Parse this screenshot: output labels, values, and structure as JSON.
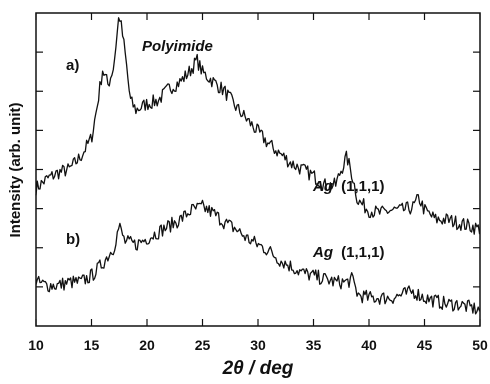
{
  "chart_data": {
    "type": "line",
    "title": "",
    "xlabel": "2θ / deg",
    "ylabel": "Intensity (arb. unit)",
    "xlim": [
      10,
      50
    ],
    "x_ticks": [
      10,
      15,
      20,
      25,
      30,
      35,
      40,
      45,
      50
    ],
    "tick_labels": [
      "10",
      "15",
      "20",
      "25",
      "30",
      "35",
      "40",
      "45",
      "50"
    ],
    "grid": false,
    "y_tick_labels_shown": false,
    "annotations": {
      "label_a": "a)",
      "label_b": "b)",
      "polyimide": "Polyimide",
      "ag_a_italic": "Ag",
      "ag_a_index": "(1,1,1)",
      "ag_b_italic": "Ag",
      "ag_b_index": "(1,1,1)"
    },
    "series": [
      {
        "id": "a",
        "x": [
          10,
          11,
          12,
          13,
          14,
          15,
          15.5,
          16,
          16.5,
          17,
          17.5,
          18,
          18.5,
          19,
          20,
          21,
          22,
          23,
          24,
          24.5,
          25,
          26,
          27,
          28,
          29,
          30,
          31,
          32,
          33,
          34,
          35,
          36,
          37,
          37.5,
          38,
          38.5,
          39,
          40,
          41,
          42,
          43,
          44,
          44.5,
          45,
          46,
          47,
          48,
          49,
          50
        ],
        "y": [
          0.44,
          0.47,
          0.49,
          0.5,
          0.54,
          0.6,
          0.7,
          0.82,
          0.77,
          0.83,
          1.0,
          0.88,
          0.72,
          0.69,
          0.71,
          0.72,
          0.76,
          0.78,
          0.82,
          0.85,
          0.81,
          0.78,
          0.75,
          0.7,
          0.66,
          0.62,
          0.58,
          0.55,
          0.52,
          0.5,
          0.48,
          0.45,
          0.45,
          0.5,
          0.54,
          0.48,
          0.4,
          0.37,
          0.36,
          0.37,
          0.37,
          0.38,
          0.41,
          0.37,
          0.34,
          0.34,
          0.33,
          0.32,
          0.31
        ]
      },
      {
        "id": "b",
        "x": [
          10,
          11,
          12,
          13,
          14,
          15,
          16,
          17,
          17.5,
          18,
          19,
          20,
          21,
          22,
          23,
          24,
          25,
          26,
          27,
          28,
          29,
          30,
          31,
          32,
          33,
          34,
          35,
          36,
          37,
          38,
          38.5,
          39,
          40,
          41,
          42,
          43,
          44,
          45,
          46,
          47,
          48,
          49,
          50
        ],
        "y": [
          0.14,
          0.13,
          0.13,
          0.14,
          0.14,
          0.16,
          0.2,
          0.25,
          0.32,
          0.27,
          0.26,
          0.28,
          0.3,
          0.32,
          0.34,
          0.37,
          0.38,
          0.36,
          0.33,
          0.31,
          0.28,
          0.26,
          0.24,
          0.21,
          0.19,
          0.17,
          0.16,
          0.15,
          0.14,
          0.14,
          0.15,
          0.1,
          0.09,
          0.09,
          0.09,
          0.1,
          0.11,
          0.09,
          0.08,
          0.07,
          0.07,
          0.06,
          0.05
        ]
      }
    ]
  }
}
